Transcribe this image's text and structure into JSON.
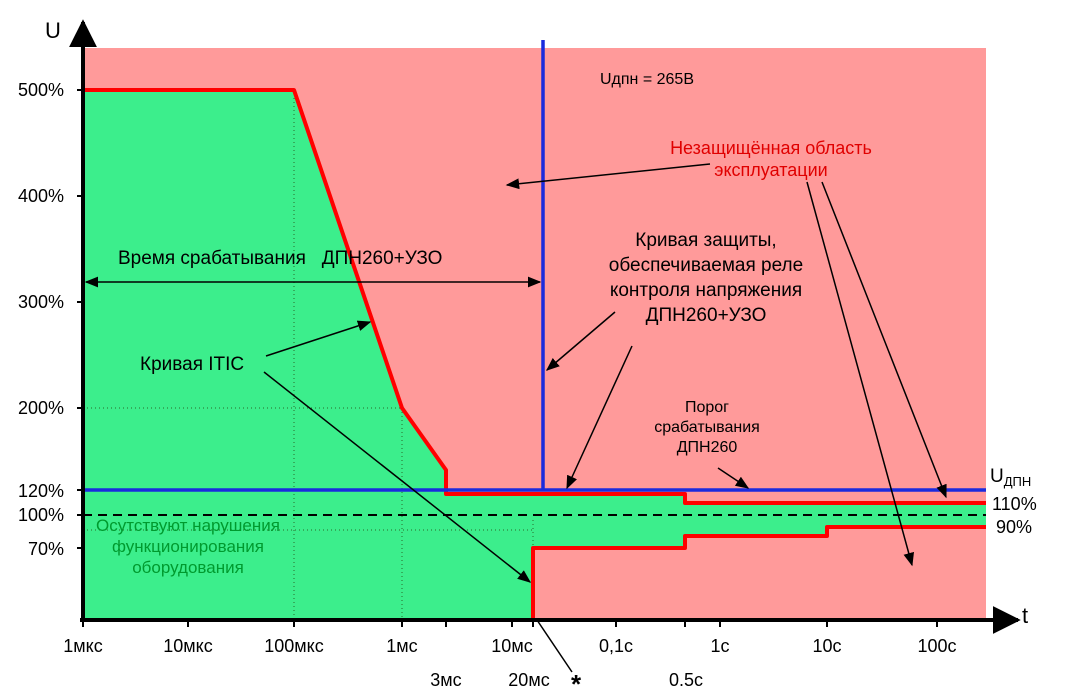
{
  "chart_data": {
    "type": "area",
    "axes": {
      "y_name": "U",
      "x_name": "t",
      "y_tick_labels": [
        "500%",
        "400%",
        "300%",
        "200%",
        "120%",
        "100%",
        "70%"
      ],
      "x_tick_labels_top": [
        "1мкс",
        "10мкс",
        "100мкс",
        "1мс",
        "10мс",
        "0,1с",
        "1с",
        "10с",
        "100с"
      ],
      "x_tick_labels_bottom": [
        "3мс",
        "20мс",
        "0.5с"
      ],
      "asterisk": "*",
      "x_scale": "log",
      "grid": "dotted"
    },
    "itic_upper": {
      "name": "Кривая ITIC",
      "color": "#ff0000",
      "points": [
        [
          "1мкс",
          "500%"
        ],
        [
          "100мкс",
          "500%"
        ],
        [
          "1мс",
          "200%"
        ],
        [
          "3мс",
          "140%"
        ],
        [
          "3мс",
          "120%"
        ],
        [
          "0.5с",
          "120%"
        ],
        [
          "0.5с",
          "110%"
        ],
        [
          "100с",
          "110%"
        ]
      ]
    },
    "itic_lower": {
      "color": "#ff0000",
      "points": [
        [
          "20мс",
          "0%"
        ],
        [
          "20мс",
          "70%"
        ],
        [
          "0.5с",
          "70%"
        ],
        [
          "0.5с",
          "80%"
        ],
        [
          "10с",
          "80%"
        ],
        [
          "10с",
          "90%"
        ],
        [
          "100с",
          "90%"
        ]
      ]
    },
    "protection_curve": {
      "name": "Кривая защиты, обеспечиваемая реле контроля напряжения ДПН260+УЗО",
      "color": "#1a2bdd",
      "vertical_at": "20мс",
      "horizontal_level": "120%"
    },
    "nominal_line": {
      "level": "100%",
      "style": "dashed"
    }
  },
  "labels": {
    "u_dpn_value": "Uдпн = 265В",
    "unprotected_line1": "Незащищённая область",
    "unprotected_line2": "эксплуатации",
    "response_time": "Время срабатывания   ДПН260+УЗО",
    "protection_line1": "Кривая защиты,",
    "protection_line2": "обеспечиваемая реле",
    "protection_line3": "контроля напряжения",
    "protection_line4": "ДПН260+УЗО",
    "itic_label": "Кривая ITIC",
    "threshold_line1": "Порог",
    "threshold_line2": "срабатывания",
    "threshold_line3": "ДПН260",
    "u_dpn_main": "U",
    "u_dpn_sub": "ДПН",
    "pct_110": "110%",
    "pct_90": "90%",
    "safe_line1": "Осутствуют нарушения",
    "safe_line2": "функционирования",
    "safe_line3": "оборудования"
  },
  "colors": {
    "safe_area": "#3cee8c",
    "unsafe_area": "#ff9a9a",
    "itic": "#ff0000",
    "protection": "#1a2bdd",
    "unprotected_text": "#e00000",
    "safe_text": "#009a2e"
  }
}
